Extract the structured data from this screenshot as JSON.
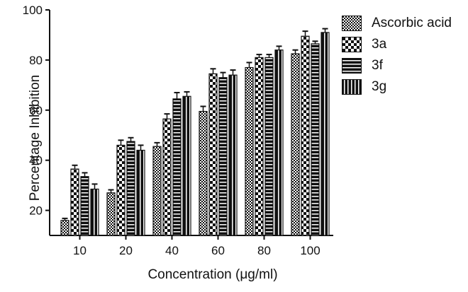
{
  "chart_data": {
    "type": "bar",
    "title": "",
    "xlabel": "Concentration (μg/ml)",
    "ylabel": "Percentage Inhibition",
    "categories": [
      "10",
      "20",
      "40",
      "60",
      "80",
      "100"
    ],
    "ylim": [
      10,
      100
    ],
    "yticks": [
      20,
      40,
      60,
      80,
      100
    ],
    "grid": false,
    "legend_position": "top-right",
    "series": [
      {
        "name": "Ascorbic acid",
        "values": [
          16,
          27,
          45.5,
          59.5,
          77,
          82.5
        ],
        "errors": [
          0.8,
          1.2,
          1.5,
          2,
          2,
          1.5
        ],
        "pattern": "fine-check"
      },
      {
        "name": "3a",
        "values": [
          36.5,
          46,
          56.5,
          74.5,
          81,
          89.5
        ],
        "errors": [
          1.5,
          2,
          2,
          2,
          1.2,
          2
        ],
        "pattern": "coarse-check"
      },
      {
        "name": "3f",
        "values": [
          33.5,
          47.5,
          64.5,
          73,
          81,
          86.5
        ],
        "errors": [
          1.5,
          1.5,
          2.5,
          2,
          1.2,
          1
        ],
        "pattern": "horizontal-lines"
      },
      {
        "name": "3g",
        "values": [
          28.5,
          44,
          65.5,
          74,
          84,
          91
        ],
        "errors": [
          2,
          2,
          1.8,
          2,
          1.5,
          1.5
        ],
        "pattern": "vertical-lines"
      }
    ]
  }
}
